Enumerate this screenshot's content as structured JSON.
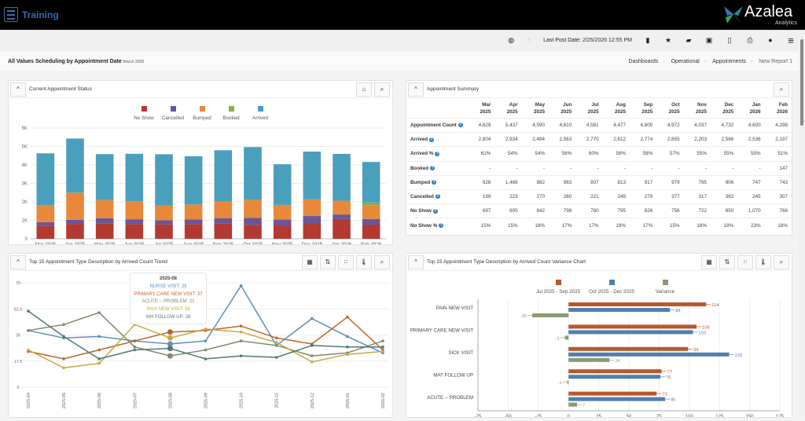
{
  "header": {
    "app_title": "Training",
    "logo_text": "Azalea",
    "logo_subtext": "Analytics"
  },
  "toolbar": {
    "last_post_label": "Last Post Date:",
    "last_post_value": "2/25/2026 12:55 PM",
    "icons": [
      "globe-icon",
      "file-icon",
      "star-icon",
      "folder-icon",
      "save-icon",
      "trash-icon",
      "print-icon",
      "info-icon",
      "menu-icon"
    ]
  },
  "page": {
    "title": "All Values Scheduling by Appointment Date",
    "subtitle": "March 2026",
    "breadcrumb": [
      "Dashboards",
      "Operational",
      "Appointments",
      "New Report 1"
    ]
  },
  "panels": {
    "status": {
      "title": "Current Appointment Status"
    },
    "summary": {
      "title": "Appointment Summary"
    },
    "trend": {
      "title": "Top 15 Appointment Type Description by Arrived Count Trend"
    },
    "variance": {
      "title": "Top 15 Appointment Type Description by Arrived Count Variance Chart"
    }
  },
  "summary_table": {
    "columns": [
      [
        "Mar",
        "2025"
      ],
      [
        "Apr",
        "2025"
      ],
      [
        "May",
        "2025"
      ],
      [
        "Jun",
        "2025"
      ],
      [
        "Jul",
        "2025"
      ],
      [
        "Aug",
        "2025"
      ],
      [
        "Sep",
        "2025"
      ],
      [
        "Oct",
        "2025"
      ],
      [
        "Nov",
        "2025"
      ],
      [
        "Dec",
        "2025"
      ],
      [
        "Jan",
        "2026"
      ],
      [
        "Feb",
        "2026"
      ]
    ],
    "rows": [
      {
        "label": "Appointment Count",
        "values": [
          "4,629",
          "5,437",
          "4,590",
          "4,610",
          "4,581",
          "4,477",
          "4,800",
          "4,972",
          "4,037",
          "4,732",
          "4,600",
          "4,298"
        ]
      },
      {
        "label": "Arrived",
        "values": [
          "2,804",
          "2,934",
          "2,494",
          "2,563",
          "2,770",
          "2,612",
          "2,774",
          "2,855",
          "2,203",
          "2,586",
          "2,536",
          "2,197"
        ]
      },
      {
        "label": "Arrived %",
        "values": [
          "61%",
          "54%",
          "54%",
          "56%",
          "60%",
          "58%",
          "58%",
          "57%",
          "55%",
          "55%",
          "55%",
          "51%"
        ]
      },
      {
        "label": "Booked",
        "values": [
          "-",
          "-",
          "-",
          "-",
          "-",
          "-",
          "-",
          "-",
          "-",
          "-",
          "-",
          "147"
        ]
      },
      {
        "label": "Bumped",
        "values": [
          "928",
          "1,468",
          "982",
          "983",
          "807",
          "813",
          "917",
          "979",
          "795",
          "906",
          "747",
          "743"
        ]
      },
      {
        "label": "Cancelled",
        "values": [
          "199",
          "223",
          "270",
          "260",
          "221",
          "249",
          "279",
          "377",
          "317",
          "382",
          "245",
          "307"
        ]
      },
      {
        "label": "No Show",
        "values": [
          "697",
          "805",
          "842",
          "798",
          "780",
          "795",
          "826",
          "756",
          "722",
          "850",
          "1,070",
          "768"
        ]
      },
      {
        "label": "No Show %",
        "values": [
          "15%",
          "15%",
          "18%",
          "17%",
          "17%",
          "18%",
          "17%",
          "15%",
          "18%",
          "18%",
          "23%",
          "18%"
        ]
      }
    ]
  },
  "chart_data": [
    {
      "type": "bar",
      "stacked": true,
      "legend": "top",
      "categories": [
        "Mar 2025",
        "Apr 2025",
        "May 2025",
        "Jun 2025",
        "Jul 2025",
        "Aug 2025",
        "Sep 2025",
        "Oct 2025",
        "Nov 2025",
        "Dec 2025",
        "Jan 2026",
        "Feb 2026"
      ],
      "ylim": [
        0,
        6000
      ],
      "yticks": [
        "0",
        "1K",
        "2K",
        "3K",
        "4K",
        "5K",
        "6K"
      ],
      "grid": true,
      "series": [
        {
          "name": "No Show",
          "color": "#b23a32",
          "values": [
            697,
            805,
            842,
            798,
            780,
            795,
            826,
            756,
            722,
            850,
            1070,
            768
          ]
        },
        {
          "name": "Cancelled",
          "color": "#6a5697",
          "values": [
            199,
            223,
            270,
            260,
            221,
            249,
            279,
            377,
            317,
            382,
            245,
            307
          ]
        },
        {
          "name": "Bumped",
          "color": "#e8883a",
          "values": [
            928,
            1468,
            982,
            983,
            807,
            813,
            917,
            979,
            795,
            906,
            747,
            743
          ]
        },
        {
          "name": "Booked",
          "color": "#8aab4f",
          "values": [
            0,
            0,
            0,
            0,
            0,
            0,
            0,
            0,
            0,
            0,
            0,
            147
          ]
        },
        {
          "name": "Arrived",
          "color": "#4aa0bc",
          "values": [
            2804,
            2934,
            2494,
            2563,
            2770,
            2612,
            2774,
            2855,
            2203,
            2586,
            2536,
            2197
          ]
        }
      ]
    },
    {
      "type": "line",
      "legend": "none",
      "x": [
        "2025-04",
        "2025-05",
        "2025-06",
        "2025-07",
        "2025-08",
        "2025-09",
        "2025-10",
        "2025-11",
        "2025-12",
        "2026-01",
        "2026-02"
      ],
      "ylim": [
        0,
        70
      ],
      "yticks": [
        "0",
        "17.5",
        "35",
        "52.5",
        "70"
      ],
      "grid": true,
      "series": [
        {
          "name": "NURSE VISIT",
          "color": "#5b8fb9",
          "values": [
            38,
            33,
            34,
            31,
            29,
            31,
            68,
            28,
            46,
            34,
            23
          ]
        },
        {
          "name": "PRIMARY CARE NEW VISIT",
          "color": "#c0622b",
          "values": [
            24,
            19,
            25,
            31,
            37,
            38,
            41,
            33,
            29,
            47,
            25
          ]
        },
        {
          "name": "ACUTE -- PROBLEM",
          "color": "#7d8a6c",
          "values": [
            38,
            42,
            50,
            27,
            21,
            25,
            31,
            28,
            21,
            23,
            31
          ]
        },
        {
          "name": "PAIN NEW VISIT",
          "color": "#c9a83e",
          "values": [
            25,
            13,
            16,
            42,
            33,
            39,
            37,
            30,
            17,
            22,
            24
          ]
        },
        {
          "name": "WH FOLLOW UP",
          "color": "#4f7a6e",
          "values": [
            51,
            34,
            19,
            25,
            26,
            19,
            21,
            20,
            28,
            27,
            27
          ]
        }
      ],
      "tooltip": {
        "title": "2025-08",
        "lines": [
          "NURSE VISIT: 29",
          "PRIMARY CARE NEW VISIT: 37",
          "ACUTE -- PROBLEM: 21",
          "PAIN NEW VISIT: 33",
          "WH FOLLOW UP: 26"
        ]
      }
    },
    {
      "type": "bar",
      "orientation": "horizontal",
      "legend": "top",
      "categories": [
        "PAIN NEW VISIT",
        "PRIMARY CARE NEW VISIT",
        "SICK VISIT",
        "MAT FOLLOW UP",
        "ACUTE -- PROBLEM"
      ],
      "xlim": [
        -75,
        175
      ],
      "xticks": [
        "-75",
        "-50",
        "-25",
        "0",
        "25",
        "50",
        "75",
        "100",
        "125",
        "150",
        "175"
      ],
      "grid": true,
      "series": [
        {
          "name": "Jul 2025 - Sep 2025",
          "color": "#b8582a",
          "values": [
            114,
            106,
            99,
            77,
            73
          ]
        },
        {
          "name": "Oct 2025 - Dec 2025",
          "color": "#4f7fb0",
          "values": [
            84,
            103,
            133,
            76,
            80
          ]
        },
        {
          "name": "Variance",
          "color": "#8a9a72",
          "values": [
            -30,
            -3,
            34,
            -1,
            7
          ]
        }
      ]
    }
  ]
}
